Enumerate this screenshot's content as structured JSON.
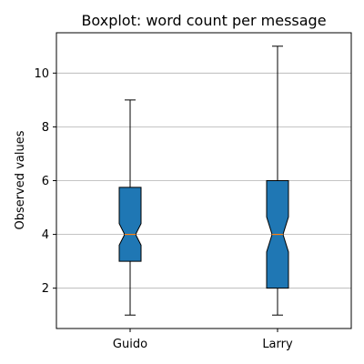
{
  "chart_data": {
    "type": "boxplot",
    "title": "Boxplot: word count per message",
    "xlabel": "",
    "ylabel": "Observed values",
    "categories": [
      "Guido",
      "Larry"
    ],
    "boxes": [
      {
        "name": "Guido",
        "whisker_low": 1,
        "q1": 3,
        "median": 4,
        "q3": 5.75,
        "whisker_high": 9,
        "notch_low": 3.6,
        "notch_high": 4.4
      },
      {
        "name": "Larry",
        "whisker_low": 1,
        "q1": 2,
        "median": 4,
        "q3": 6,
        "whisker_high": 11,
        "notch_low": 3.35,
        "notch_high": 4.65
      }
    ],
    "ylim": [
      0.5,
      11.5
    ],
    "yticks": [
      2,
      4,
      6,
      8,
      10
    ],
    "grid": "y",
    "notched": true,
    "box_color": "#1f77b4",
    "median_color": "#ff7f0e",
    "grid_color": "#b0b0b0"
  }
}
